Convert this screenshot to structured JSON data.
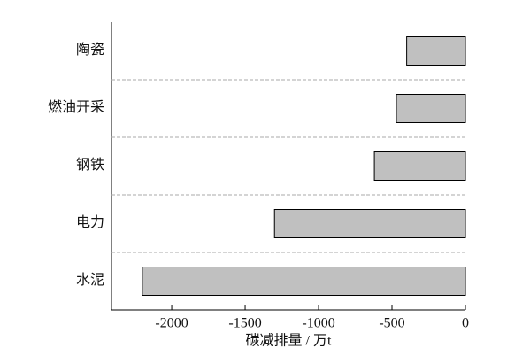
{
  "chart_data": {
    "type": "barh",
    "xlabel": "碳减排量 / 万t",
    "categories": [
      "陶瓷",
      "燃油开采",
      "钢铁",
      "电力",
      "水泥"
    ],
    "values": [
      -400,
      -470,
      -620,
      -1300,
      -2200
    ],
    "color": "#c0c0c0",
    "xlim": [
      -2410,
      0
    ],
    "xticks": [
      -2000,
      -1500,
      -1000,
      -500,
      0
    ],
    "separators": true
  }
}
